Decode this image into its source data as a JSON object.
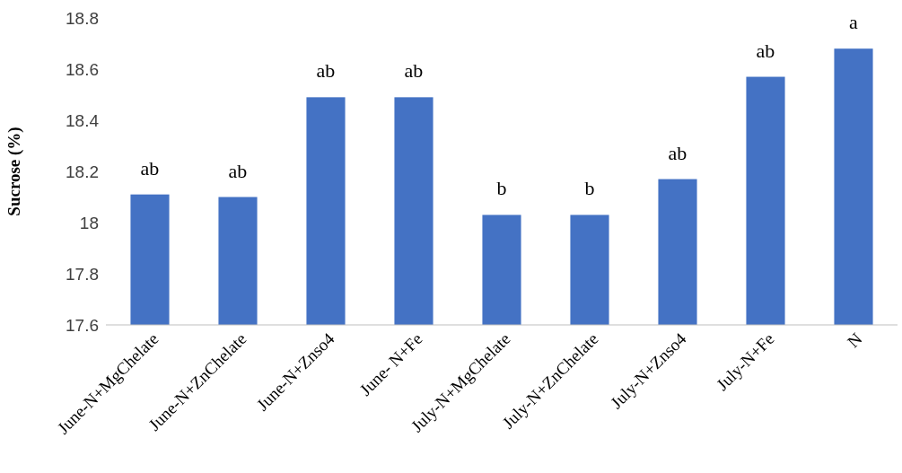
{
  "chart_data": {
    "type": "bar",
    "ylabel": "Sucrose (%)",
    "categories": [
      "June-N+MgChelate",
      "June-N+ZnChelate",
      "June-N+Znso4",
      "June- N+Fe",
      "July-N+MgChelate",
      "July-N+ZnChelate",
      "July-N+Znso4",
      "July-N+Fe",
      "N"
    ],
    "values": [
      18.11,
      18.1,
      18.49,
      18.49,
      18.03,
      18.03,
      18.17,
      18.57,
      18.68
    ],
    "color": "#4472c4",
    "ylim": [
      17.6,
      18.8
    ],
    "yticks": [
      17.6,
      17.8,
      18,
      18.2,
      18.4,
      18.6,
      18.8
    ],
    "grid": false,
    "annotations": [
      {
        "text": "ab",
        "x": "June-N+MgChelate",
        "y": 18.11
      },
      {
        "text": "ab",
        "x": "June-N+ZnChelate",
        "y": 18.1
      },
      {
        "text": "ab",
        "x": "June-N+Znso4",
        "y": 18.49
      },
      {
        "text": "ab",
        "x": "June- N+Fe",
        "y": 18.49
      },
      {
        "text": "b",
        "x": "July-N+MgChelate",
        "y": 18.03
      },
      {
        "text": "b",
        "x": "July-N+ZnChelate",
        "y": 18.03
      },
      {
        "text": "ab",
        "x": "July-N+Znso4",
        "y": 18.17
      },
      {
        "text": "ab",
        "x": "July-N+Fe",
        "y": 18.57
      },
      {
        "text": "a",
        "x": "N",
        "y": 18.68
      }
    ]
  }
}
